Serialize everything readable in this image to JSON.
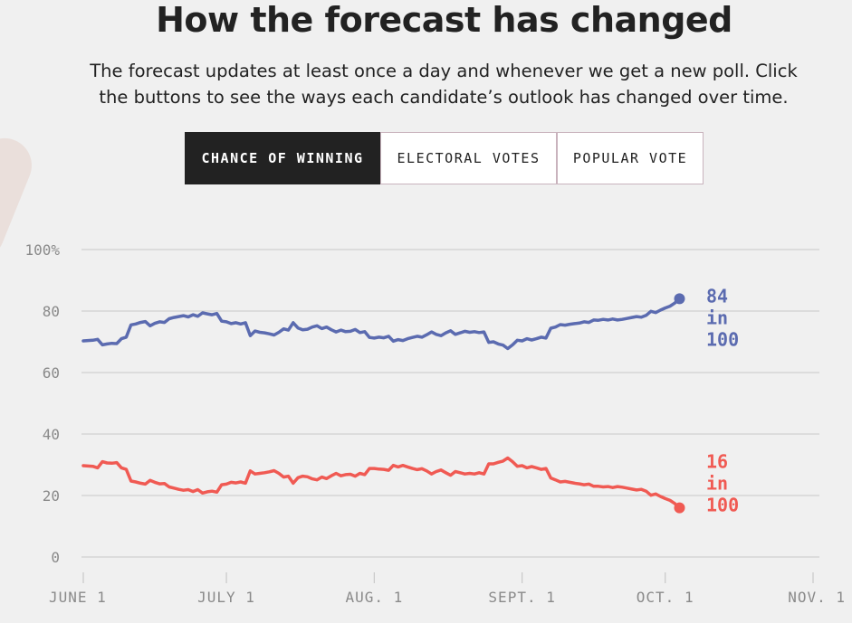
{
  "header": {
    "title": "How the forecast has changed",
    "subtitle_line1": "The forecast updates at least once a day and whenever we get a new poll. Click",
    "subtitle_line2": "the buttons to see the ways each candidate’s outlook has changed over time."
  },
  "tabs": [
    {
      "label": "CHANCE OF WINNING",
      "active": true
    },
    {
      "label": "ELECTORAL VOTES",
      "active": false
    },
    {
      "label": "POPULAR VOTE",
      "active": false
    }
  ],
  "colors": {
    "blue": "#5b6bb0",
    "red": "#f05a53",
    "grid": "#c8c8c8",
    "tick_text": "#8a8a8a"
  },
  "chart_data": {
    "type": "line",
    "title": "",
    "xlabel": "",
    "ylabel": "",
    "ylim": [
      0,
      100
    ],
    "y_ticks": [
      "0",
      "20",
      "40",
      "60",
      "80",
      "100%"
    ],
    "y_tick_values": [
      0,
      20,
      40,
      60,
      80,
      100
    ],
    "x_ticks": [
      "JUNE 1",
      "JULY 1",
      "AUG. 1",
      "SEPT. 1",
      "OCT. 1",
      "NOV. 1"
    ],
    "x_tick_days": [
      0,
      30,
      61,
      92,
      122,
      153
    ],
    "x_range_days": [
      0,
      153
    ],
    "grid": true,
    "legend": "none",
    "series": [
      {
        "color": "#5b6bb0",
        "end_value": "84",
        "end_label": [
          "84",
          "in",
          "100"
        ],
        "points": [
          [
            0,
            70.3
          ],
          [
            2,
            70.5
          ],
          [
            3,
            70.8
          ],
          [
            4,
            69.0
          ],
          [
            5,
            69.3
          ],
          [
            6,
            69.5
          ],
          [
            7,
            69.4
          ],
          [
            8,
            71.0
          ],
          [
            9,
            71.5
          ],
          [
            10,
            75.5
          ],
          [
            11,
            75.8
          ],
          [
            12,
            76.3
          ],
          [
            13,
            76.6
          ],
          [
            14,
            75.2
          ],
          [
            15,
            76.0
          ],
          [
            16,
            76.5
          ],
          [
            17,
            76.3
          ],
          [
            18,
            77.5
          ],
          [
            19,
            77.9
          ],
          [
            20,
            78.2
          ],
          [
            21,
            78.5
          ],
          [
            22,
            78.1
          ],
          [
            23,
            78.8
          ],
          [
            24,
            78.3
          ],
          [
            25,
            79.4
          ],
          [
            26,
            79.1
          ],
          [
            27,
            78.8
          ],
          [
            28,
            79.2
          ],
          [
            29,
            76.7
          ],
          [
            30,
            76.5
          ],
          [
            31,
            75.9
          ],
          [
            32,
            76.2
          ],
          [
            33,
            75.8
          ],
          [
            34,
            76.2
          ],
          [
            35,
            72.0
          ],
          [
            36,
            73.5
          ],
          [
            37,
            73.1
          ],
          [
            38,
            72.9
          ],
          [
            39,
            72.6
          ],
          [
            40,
            72.2
          ],
          [
            41,
            73.1
          ],
          [
            42,
            74.2
          ],
          [
            43,
            73.8
          ],
          [
            44,
            76.2
          ],
          [
            45,
            74.5
          ],
          [
            46,
            73.9
          ],
          [
            47,
            74.1
          ],
          [
            48,
            74.8
          ],
          [
            49,
            75.2
          ],
          [
            50,
            74.3
          ],
          [
            51,
            74.8
          ],
          [
            52,
            73.9
          ],
          [
            53,
            73.2
          ],
          [
            54,
            73.8
          ],
          [
            55,
            73.3
          ],
          [
            56,
            73.4
          ],
          [
            57,
            74.0
          ],
          [
            58,
            73.0
          ],
          [
            59,
            73.3
          ],
          [
            60,
            71.4
          ],
          [
            61,
            71.2
          ],
          [
            62,
            71.5
          ],
          [
            63,
            71.3
          ],
          [
            64,
            71.8
          ],
          [
            65,
            70.2
          ],
          [
            66,
            70.7
          ],
          [
            67,
            70.4
          ],
          [
            68,
            71.0
          ],
          [
            69,
            71.4
          ],
          [
            70,
            71.8
          ],
          [
            71,
            71.5
          ],
          [
            72,
            72.3
          ],
          [
            73,
            73.2
          ],
          [
            74,
            72.4
          ],
          [
            75,
            72.0
          ],
          [
            76,
            72.9
          ],
          [
            77,
            73.6
          ],
          [
            78,
            72.4
          ],
          [
            79,
            72.9
          ],
          [
            80,
            73.4
          ],
          [
            81,
            73.1
          ],
          [
            82,
            73.3
          ],
          [
            83,
            73.0
          ],
          [
            84,
            73.2
          ],
          [
            85,
            69.8
          ],
          [
            86,
            70.0
          ],
          [
            87,
            69.3
          ],
          [
            88,
            68.9
          ],
          [
            89,
            67.8
          ],
          [
            90,
            69.0
          ],
          [
            91,
            70.5
          ],
          [
            92,
            70.3
          ],
          [
            93,
            71.0
          ],
          [
            94,
            70.6
          ],
          [
            95,
            71.0
          ],
          [
            96,
            71.5
          ],
          [
            97,
            71.2
          ],
          [
            98,
            74.4
          ],
          [
            99,
            74.8
          ],
          [
            100,
            75.6
          ],
          [
            101,
            75.4
          ],
          [
            102,
            75.7
          ],
          [
            103,
            75.9
          ],
          [
            104,
            76.1
          ],
          [
            105,
            76.5
          ],
          [
            106,
            76.3
          ],
          [
            107,
            77.1
          ],
          [
            108,
            77.0
          ],
          [
            109,
            77.3
          ],
          [
            110,
            77.1
          ],
          [
            111,
            77.4
          ],
          [
            112,
            77.1
          ],
          [
            113,
            77.3
          ],
          [
            114,
            77.6
          ],
          [
            115,
            77.9
          ],
          [
            116,
            78.2
          ],
          [
            117,
            78.0
          ],
          [
            118,
            78.6
          ],
          [
            119,
            79.9
          ],
          [
            120,
            79.5
          ],
          [
            121,
            80.3
          ],
          [
            122,
            81.0
          ],
          [
            123,
            81.6
          ],
          [
            124,
            82.6
          ],
          [
            125,
            84.0
          ]
        ]
      },
      {
        "color": "#f05a53",
        "end_value": "16",
        "end_label": [
          "16",
          "in",
          "100"
        ],
        "points": [
          [
            0,
            29.7
          ],
          [
            2,
            29.5
          ],
          [
            3,
            29.0
          ],
          [
            4,
            31.0
          ],
          [
            5,
            30.6
          ],
          [
            6,
            30.5
          ],
          [
            7,
            30.7
          ],
          [
            8,
            29.0
          ],
          [
            9,
            28.5
          ],
          [
            10,
            24.7
          ],
          [
            11,
            24.4
          ],
          [
            12,
            24.0
          ],
          [
            13,
            23.7
          ],
          [
            14,
            24.9
          ],
          [
            15,
            24.3
          ],
          [
            16,
            23.8
          ],
          [
            17,
            23.9
          ],
          [
            18,
            22.8
          ],
          [
            19,
            22.4
          ],
          [
            20,
            22.0
          ],
          [
            21,
            21.7
          ],
          [
            22,
            21.9
          ],
          [
            23,
            21.3
          ],
          [
            24,
            21.9
          ],
          [
            25,
            20.8
          ],
          [
            26,
            21.2
          ],
          [
            27,
            21.4
          ],
          [
            28,
            21.1
          ],
          [
            29,
            23.5
          ],
          [
            30,
            23.7
          ],
          [
            31,
            24.3
          ],
          [
            32,
            24.1
          ],
          [
            33,
            24.4
          ],
          [
            34,
            24.0
          ],
          [
            35,
            28.0
          ],
          [
            36,
            27.0
          ],
          [
            37,
            27.2
          ],
          [
            38,
            27.4
          ],
          [
            39,
            27.7
          ],
          [
            40,
            28.1
          ],
          [
            41,
            27.2
          ],
          [
            42,
            26.0
          ],
          [
            43,
            26.3
          ],
          [
            44,
            24.0
          ],
          [
            45,
            25.8
          ],
          [
            46,
            26.3
          ],
          [
            47,
            26.1
          ],
          [
            48,
            25.4
          ],
          [
            49,
            25.1
          ],
          [
            50,
            26.0
          ],
          [
            51,
            25.5
          ],
          [
            52,
            26.4
          ],
          [
            53,
            27.2
          ],
          [
            54,
            26.4
          ],
          [
            55,
            26.8
          ],
          [
            56,
            26.9
          ],
          [
            57,
            26.3
          ],
          [
            58,
            27.2
          ],
          [
            59,
            26.8
          ],
          [
            60,
            28.8
          ],
          [
            61,
            28.8
          ],
          [
            62,
            28.6
          ],
          [
            63,
            28.5
          ],
          [
            64,
            28.2
          ],
          [
            65,
            29.8
          ],
          [
            66,
            29.3
          ],
          [
            67,
            29.8
          ],
          [
            68,
            29.3
          ],
          [
            69,
            28.8
          ],
          [
            70,
            28.4
          ],
          [
            71,
            28.7
          ],
          [
            72,
            28.0
          ],
          [
            73,
            27.0
          ],
          [
            74,
            27.8
          ],
          [
            75,
            28.3
          ],
          [
            76,
            27.4
          ],
          [
            77,
            26.6
          ],
          [
            78,
            27.8
          ],
          [
            79,
            27.4
          ],
          [
            80,
            27.0
          ],
          [
            81,
            27.2
          ],
          [
            82,
            27.0
          ],
          [
            83,
            27.4
          ],
          [
            84,
            27.0
          ],
          [
            85,
            30.3
          ],
          [
            86,
            30.3
          ],
          [
            87,
            30.8
          ],
          [
            88,
            31.2
          ],
          [
            89,
            32.2
          ],
          [
            90,
            31.0
          ],
          [
            91,
            29.5
          ],
          [
            92,
            29.7
          ],
          [
            93,
            29.0
          ],
          [
            94,
            29.4
          ],
          [
            95,
            29.0
          ],
          [
            96,
            28.5
          ],
          [
            97,
            28.8
          ],
          [
            98,
            25.7
          ],
          [
            99,
            25.1
          ],
          [
            100,
            24.4
          ],
          [
            101,
            24.6
          ],
          [
            102,
            24.3
          ],
          [
            103,
            24.0
          ],
          [
            104,
            23.8
          ],
          [
            105,
            23.5
          ],
          [
            106,
            23.7
          ],
          [
            107,
            23.0
          ],
          [
            108,
            23.0
          ],
          [
            109,
            22.8
          ],
          [
            110,
            22.9
          ],
          [
            111,
            22.6
          ],
          [
            112,
            22.9
          ],
          [
            113,
            22.7
          ],
          [
            114,
            22.4
          ],
          [
            115,
            22.1
          ],
          [
            116,
            21.8
          ],
          [
            117,
            22.0
          ],
          [
            118,
            21.4
          ],
          [
            119,
            20.1
          ],
          [
            120,
            20.5
          ],
          [
            121,
            19.7
          ],
          [
            122,
            19.0
          ],
          [
            123,
            18.4
          ],
          [
            124,
            17.4
          ],
          [
            125,
            16.0
          ]
        ]
      }
    ]
  }
}
